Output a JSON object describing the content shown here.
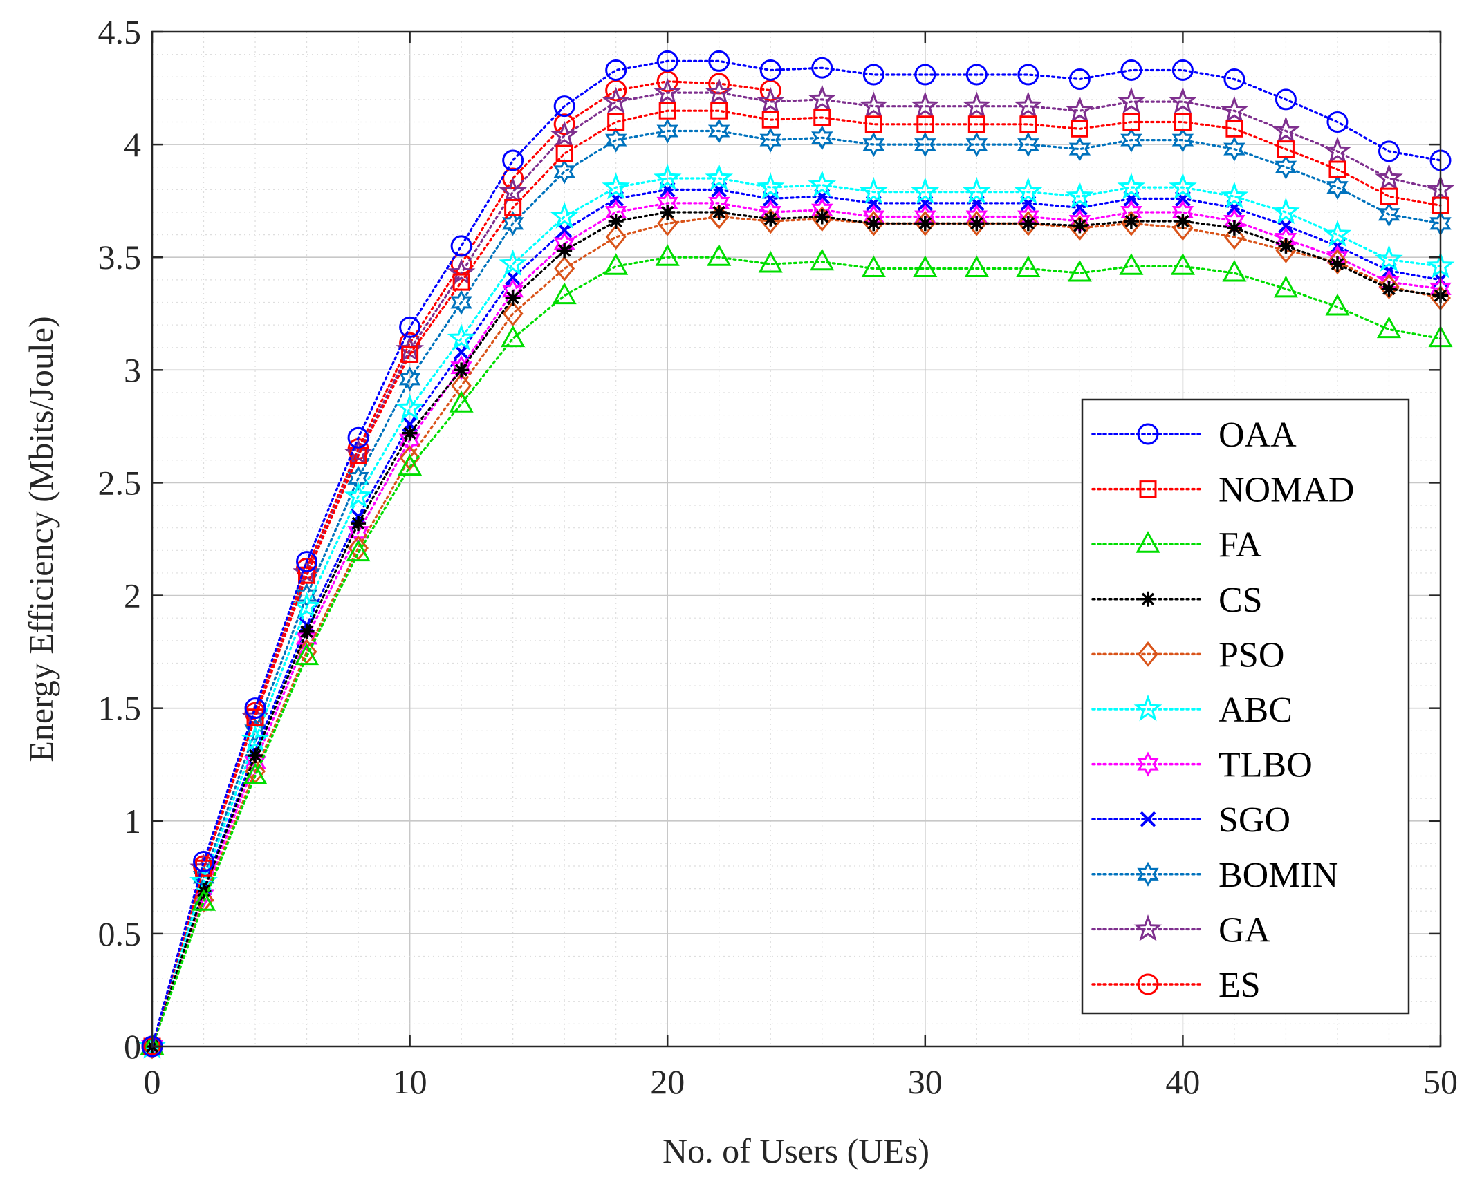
{
  "chart_data": {
    "type": "line",
    "title": "",
    "xlabel": "No. of Users (UEs)",
    "ylabel": "Energy Efficiency (Mbits/Joule)",
    "xlim": [
      0,
      50
    ],
    "ylim": [
      0,
      4.5
    ],
    "grid": true,
    "minor_grid": true,
    "legend_position": "right-bottom",
    "x_tick_labels": [
      "0",
      "10",
      "20",
      "30",
      "40",
      "50"
    ],
    "y_tick_labels": [
      "0",
      "0.5",
      "1",
      "1.5",
      "2",
      "2.5",
      "3",
      "3.5",
      "4",
      "4.5"
    ],
    "x": [
      0,
      2,
      4,
      6,
      8,
      10,
      12,
      14,
      16,
      18,
      20,
      22,
      24,
      26,
      28,
      30,
      32,
      34,
      36,
      38,
      40,
      42,
      44,
      46,
      48,
      50
    ],
    "series": [
      {
        "name": "OAA",
        "color": "#0000ff",
        "marker": "circle",
        "values": [
          0,
          0.82,
          1.5,
          2.15,
          2.7,
          3.19,
          3.55,
          3.93,
          4.17,
          4.33,
          4.37,
          4.37,
          4.33,
          4.34,
          4.31,
          4.31,
          4.31,
          4.31,
          4.29,
          4.33,
          4.33,
          4.29,
          4.2,
          4.1,
          3.97,
          3.93
        ]
      },
      {
        "name": "NOMAD",
        "color": "#ff0000",
        "marker": "square",
        "values": [
          0,
          0.79,
          1.46,
          2.09,
          2.62,
          3.07,
          3.39,
          3.72,
          3.96,
          4.1,
          4.15,
          4.15,
          4.11,
          4.12,
          4.09,
          4.09,
          4.09,
          4.09,
          4.07,
          4.1,
          4.1,
          4.07,
          3.98,
          3.89,
          3.77,
          3.73
        ]
      },
      {
        "name": "FA",
        "color": "#00dd00",
        "marker": "triangle",
        "values": [
          0,
          0.64,
          1.2,
          1.73,
          2.19,
          2.57,
          2.85,
          3.14,
          3.33,
          3.46,
          3.5,
          3.5,
          3.47,
          3.48,
          3.45,
          3.45,
          3.45,
          3.45,
          3.43,
          3.46,
          3.46,
          3.43,
          3.36,
          3.28,
          3.18,
          3.14
        ]
      },
      {
        "name": "CS",
        "color": "#000000",
        "marker": "asterisk",
        "values": [
          0,
          0.69,
          1.29,
          1.84,
          2.32,
          2.72,
          3.0,
          3.32,
          3.53,
          3.66,
          3.7,
          3.7,
          3.67,
          3.68,
          3.65,
          3.65,
          3.65,
          3.65,
          3.64,
          3.66,
          3.66,
          3.63,
          3.55,
          3.47,
          3.36,
          3.33
        ]
      },
      {
        "name": "PSO",
        "color": "#d95319",
        "marker": "diamond",
        "values": [
          0,
          0.65,
          1.22,
          1.75,
          2.21,
          2.61,
          2.93,
          3.25,
          3.45,
          3.59,
          3.65,
          3.68,
          3.66,
          3.67,
          3.65,
          3.65,
          3.65,
          3.65,
          3.63,
          3.65,
          3.63,
          3.59,
          3.53,
          3.48,
          3.37,
          3.32
        ]
      },
      {
        "name": "ABC",
        "color": "#00ffff",
        "marker": "star5",
        "values": [
          0,
          0.73,
          1.36,
          1.95,
          2.44,
          2.83,
          3.14,
          3.47,
          3.68,
          3.81,
          3.85,
          3.85,
          3.81,
          3.82,
          3.79,
          3.79,
          3.79,
          3.79,
          3.77,
          3.81,
          3.81,
          3.77,
          3.7,
          3.6,
          3.49,
          3.46
        ]
      },
      {
        "name": "TLBO",
        "color": "#ff00ff",
        "marker": "hexagram",
        "values": [
          0,
          0.67,
          1.26,
          1.81,
          2.28,
          2.69,
          3.01,
          3.35,
          3.56,
          3.7,
          3.74,
          3.74,
          3.7,
          3.71,
          3.68,
          3.68,
          3.68,
          3.68,
          3.66,
          3.7,
          3.7,
          3.66,
          3.58,
          3.5,
          3.39,
          3.36
        ]
      },
      {
        "name": "SGO",
        "color": "#0000ff",
        "marker": "cross",
        "values": [
          0,
          0.7,
          1.31,
          1.87,
          2.35,
          2.76,
          3.08,
          3.41,
          3.62,
          3.76,
          3.8,
          3.8,
          3.76,
          3.77,
          3.74,
          3.74,
          3.74,
          3.74,
          3.72,
          3.76,
          3.76,
          3.72,
          3.64,
          3.55,
          3.44,
          3.4
        ]
      },
      {
        "name": "BOMIN",
        "color": "#0072bd",
        "marker": "hexagram",
        "values": [
          0,
          0.75,
          1.4,
          2.0,
          2.52,
          2.96,
          3.3,
          3.65,
          3.88,
          4.02,
          4.06,
          4.06,
          4.02,
          4.03,
          4.0,
          4.0,
          4.0,
          4.0,
          3.98,
          4.02,
          4.02,
          3.98,
          3.9,
          3.81,
          3.69,
          3.65
        ]
      },
      {
        "name": "GA",
        "color": "#7e2f8e",
        "marker": "star5",
        "values": [
          0,
          0.79,
          1.46,
          2.1,
          2.63,
          3.09,
          3.43,
          3.79,
          4.04,
          4.19,
          4.23,
          4.23,
          4.19,
          4.2,
          4.17,
          4.17,
          4.17,
          4.17,
          4.15,
          4.19,
          4.19,
          4.15,
          4.06,
          3.97,
          3.85,
          3.8
        ]
      },
      {
        "name": "ES",
        "color": "#ff0000",
        "marker": "circle",
        "values": [
          0,
          0.8,
          1.48,
          2.12,
          2.65,
          3.12,
          3.47,
          3.85,
          4.09,
          4.24,
          4.28,
          4.27,
          4.24,
          null,
          null,
          null,
          null,
          null,
          null,
          null,
          null,
          null,
          null,
          null,
          null,
          null
        ]
      }
    ]
  }
}
